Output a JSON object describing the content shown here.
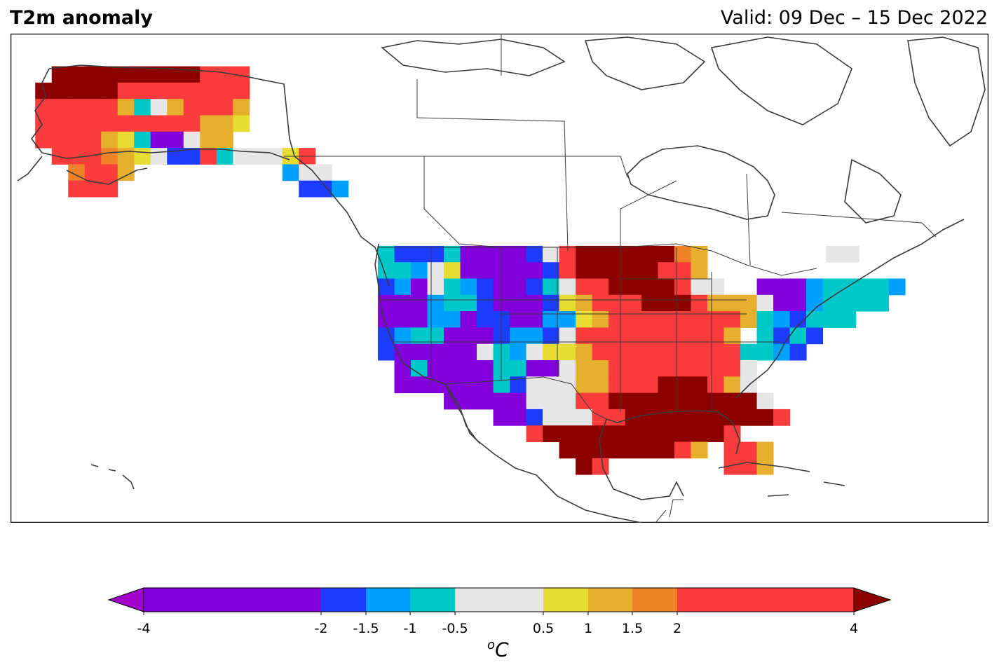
{
  "header": {
    "title": "T2m anomaly",
    "valid": "Valid: 09 Dec – 15 Dec 2022"
  },
  "colorbar": {
    "unit_base": "C",
    "unit_sup": "o",
    "ticks": [
      "-4",
      "-2",
      "-1.5",
      "-1",
      "-0.5",
      "0.5",
      "1",
      "1.5",
      "2",
      "4"
    ],
    "bins": [
      {
        "from": -4,
        "to": -2,
        "color": "#8200dc"
      },
      {
        "from": -2,
        "to": -1.5,
        "color": "#1e3cff"
      },
      {
        "from": -1.5,
        "to": -1,
        "color": "#00a0ff"
      },
      {
        "from": -1,
        "to": -0.5,
        "color": "#00c8c8"
      },
      {
        "from": -0.5,
        "to": 0.5,
        "color": "#e6e6e6"
      },
      {
        "from": 0.5,
        "to": 1,
        "color": "#e6dc32"
      },
      {
        "from": 1,
        "to": 1.5,
        "color": "#e6af2d"
      },
      {
        "from": 1.5,
        "to": 2,
        "color": "#f08228"
      },
      {
        "from": 2,
        "to": 4,
        "color": "#fa3c3c"
      }
    ],
    "extend_low_color": "#a000c8",
    "extend_high_color": "#8c0000"
  },
  "map": {
    "region": "North America",
    "variable": "2 m temperature anomaly",
    "summary": [
      {
        "area": "Alaska",
        "anomaly": "mostly +2 to above +4"
      },
      {
        "area": "Western United States",
        "anomaly": "mostly -2 to -4"
      },
      {
        "area": "Northern and Southern Plains, South",
        "anomaly": "above +4"
      },
      {
        "area": "Midwest and Southeast",
        "anomaly": "+2 to +4"
      },
      {
        "area": "Northeast",
        "anomaly": "-0.5 to -4"
      }
    ]
  }
}
